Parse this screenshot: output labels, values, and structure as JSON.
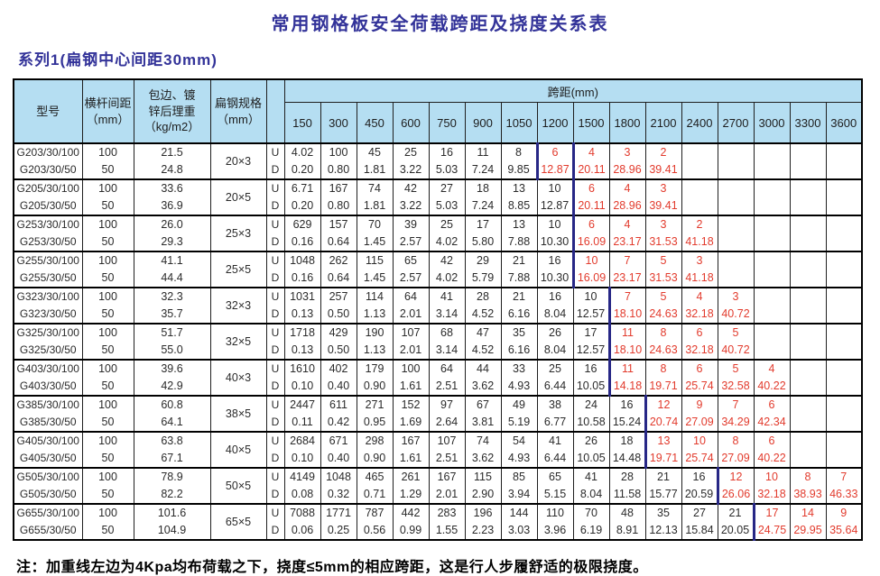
{
  "page": {
    "title": "常用钢格板安全荷载跨距及挠度关系表",
    "series_label": "系列1(扁钢中心间距30mm)",
    "note": "注：加重线左边为4Kpa均布荷载之下，挠度≤5mm的相应跨距，这是行人步履舒适的极限挠度。"
  },
  "colors": {
    "title_text": "#333399",
    "header_bg": "#b5def2",
    "red_value": "#e23b2d",
    "heavy_line": "#272786",
    "grid_border": "#1f1f1f"
  },
  "table": {
    "headers": {
      "model": "型号",
      "spacing": "横杆间距\n（mm）",
      "weight": "包边、镀\n锌后理重\n（kg/m2）",
      "spec": "扁钢规格\n（mm）",
      "span_group": "跨距(mm)"
    },
    "spans": [
      "150",
      "300",
      "450",
      "600",
      "750",
      "900",
      "1050",
      "1200",
      "1500",
      "1800",
      "2100",
      "2400",
      "2700",
      "3000",
      "3300",
      "3600"
    ],
    "ud_labels": [
      "U",
      "D"
    ],
    "rows": [
      {
        "models": [
          "G203/30/100",
          "G203/30/50"
        ],
        "spacings": [
          "100",
          "50"
        ],
        "weights": [
          "21.5",
          "24.8"
        ],
        "spec": "20×3",
        "u": [
          "4.02",
          "100",
          "45",
          "25",
          "16",
          "11",
          "8",
          "6",
          "4",
          "3",
          "2",
          "",
          "",
          "",
          "",
          ""
        ],
        "d": [
          "0.20",
          "0.80",
          "1.81",
          "3.22",
          "5.03",
          "7.24",
          "9.85",
          "12.87",
          "20.11",
          "28.96",
          "39.41",
          "",
          "",
          "",
          "",
          ""
        ],
        "red_from": 7,
        "heavy_cols": [
          7,
          8
        ]
      },
      {
        "models": [
          "G205/30/100",
          "G205/30/50"
        ],
        "spacings": [
          "100",
          "50"
        ],
        "weights": [
          "33.6",
          "36.9"
        ],
        "spec": "20×5",
        "u": [
          "6.71",
          "167",
          "74",
          "42",
          "27",
          "18",
          "13",
          "10",
          "6",
          "4",
          "3",
          "",
          "",
          "",
          "",
          ""
        ],
        "d": [
          "0.20",
          "0.80",
          "1.81",
          "3.22",
          "5.03",
          "7.24",
          "8.85",
          "12.87",
          "20.11",
          "28.96",
          "39.41",
          "",
          "",
          "",
          "",
          ""
        ],
        "red_from": 8,
        "heavy_cols": [
          8
        ]
      },
      {
        "models": [
          "G253/30/100",
          "G253/30/50"
        ],
        "spacings": [
          "100",
          "50"
        ],
        "weights": [
          "26.0",
          "29.3"
        ],
        "spec": "25×3",
        "u": [
          "629",
          "157",
          "70",
          "39",
          "25",
          "17",
          "13",
          "10",
          "6",
          "4",
          "3",
          "2",
          "",
          "",
          "",
          ""
        ],
        "d": [
          "0.16",
          "0.64",
          "1.45",
          "2.57",
          "4.02",
          "5.80",
          "7.88",
          "10.30",
          "16.09",
          "23.17",
          "31.53",
          "41.18",
          "",
          "",
          "",
          ""
        ],
        "red_from": 8,
        "heavy_cols": [
          8
        ]
      },
      {
        "models": [
          "G255/30/100",
          "G255/30/50"
        ],
        "spacings": [
          "100",
          "50"
        ],
        "weights": [
          "41.1",
          "44.4"
        ],
        "spec": "25×5",
        "u": [
          "1048",
          "262",
          "115",
          "65",
          "42",
          "29",
          "21",
          "16",
          "10",
          "7",
          "5",
          "3",
          "",
          "",
          "",
          ""
        ],
        "d": [
          "0.16",
          "0.64",
          "1.45",
          "2.57",
          "4.02",
          "5.79",
          "7.88",
          "10.30",
          "16.09",
          "23.17",
          "31.53",
          "41.18",
          "",
          "",
          "",
          ""
        ],
        "red_from": 8,
        "heavy_cols": [
          8
        ]
      },
      {
        "models": [
          "G323/30/100",
          "G323/30/50"
        ],
        "spacings": [
          "100",
          "50"
        ],
        "weights": [
          "32.3",
          "35.7"
        ],
        "spec": "32×3",
        "u": [
          "1031",
          "257",
          "114",
          "64",
          "41",
          "28",
          "21",
          "16",
          "10",
          "7",
          "5",
          "4",
          "3",
          "",
          "",
          ""
        ],
        "d": [
          "0.13",
          "0.50",
          "1.13",
          "2.01",
          "3.14",
          "4.52",
          "6.16",
          "8.04",
          "12.57",
          "18.10",
          "24.63",
          "32.18",
          "40.72",
          "",
          "",
          ""
        ],
        "red_from": 9,
        "heavy_cols": [
          9
        ]
      },
      {
        "models": [
          "G325/30/100",
          "G325/30/50"
        ],
        "spacings": [
          "100",
          "50"
        ],
        "weights": [
          "51.7",
          "55.0"
        ],
        "spec": "32×5",
        "u": [
          "1718",
          "429",
          "190",
          "107",
          "68",
          "47",
          "35",
          "26",
          "17",
          "11",
          "8",
          "6",
          "5",
          "",
          "",
          ""
        ],
        "d": [
          "0.13",
          "0.50",
          "1.13",
          "2.01",
          "3.14",
          "4.52",
          "6.16",
          "8.04",
          "12.57",
          "18.10",
          "24.63",
          "32.18",
          "40.72",
          "",
          "",
          ""
        ],
        "red_from": 9,
        "heavy_cols": [
          9
        ]
      },
      {
        "models": [
          "G403/30/100",
          "G403/30/50"
        ],
        "spacings": [
          "100",
          "50"
        ],
        "weights": [
          "39.6",
          "42.9"
        ],
        "spec": "40×3",
        "u": [
          "1610",
          "402",
          "179",
          "100",
          "64",
          "44",
          "33",
          "25",
          "16",
          "11",
          "8",
          "6",
          "5",
          "4",
          "",
          ""
        ],
        "d": [
          "0.10",
          "0.40",
          "0.90",
          "1.61",
          "2.51",
          "3.62",
          "4.93",
          "6.44",
          "10.05",
          "14.18",
          "19.71",
          "25.74",
          "32.58",
          "40.22",
          "",
          ""
        ],
        "red_from": 9,
        "heavy_cols": [
          9
        ]
      },
      {
        "models": [
          "G385/30/100",
          "G385/30/50"
        ],
        "spacings": [
          "100",
          "50"
        ],
        "weights": [
          "60.8",
          "64.1"
        ],
        "spec": "38×5",
        "u": [
          "2447",
          "611",
          "271",
          "152",
          "97",
          "67",
          "49",
          "38",
          "24",
          "16",
          "12",
          "9",
          "7",
          "6",
          "",
          ""
        ],
        "d": [
          "0.11",
          "0.42",
          "0.95",
          "1.69",
          "2.64",
          "3.81",
          "5.19",
          "6.77",
          "10.58",
          "15.24",
          "20.74",
          "27.09",
          "34.29",
          "42.34",
          "",
          ""
        ],
        "red_from": 10,
        "heavy_cols": [
          10
        ]
      },
      {
        "models": [
          "G405/30/100",
          "G405/30/50"
        ],
        "spacings": [
          "100",
          "50"
        ],
        "weights": [
          "63.8",
          "67.1"
        ],
        "spec": "40×5",
        "u": [
          "2684",
          "671",
          "298",
          "167",
          "107",
          "74",
          "54",
          "41",
          "26",
          "18",
          "13",
          "10",
          "8",
          "6",
          "",
          ""
        ],
        "d": [
          "0.10",
          "0.40",
          "0.90",
          "1.61",
          "2.51",
          "3.62",
          "4.93",
          "6.44",
          "10.05",
          "14.48",
          "19.71",
          "25.74",
          "27.09",
          "40.22",
          "",
          ""
        ],
        "red_from": 10,
        "heavy_cols": [
          10
        ]
      },
      {
        "models": [
          "G505/30/100",
          "G505/30/50"
        ],
        "spacings": [
          "100",
          "50"
        ],
        "weights": [
          "78.9",
          "82.2"
        ],
        "spec": "50×5",
        "u": [
          "4149",
          "1048",
          "465",
          "261",
          "167",
          "115",
          "85",
          "65",
          "41",
          "28",
          "21",
          "16",
          "12",
          "10",
          "8",
          "7"
        ],
        "d": [
          "0.08",
          "0.32",
          "0.71",
          "1.29",
          "2.01",
          "2.90",
          "3.94",
          "5.15",
          "8.04",
          "11.58",
          "15.77",
          "20.59",
          "26.06",
          "32.18",
          "38.93",
          "46.33"
        ],
        "red_from": 12,
        "heavy_cols": [
          12
        ]
      },
      {
        "models": [
          "G655/30/100",
          "G655/30/50"
        ],
        "spacings": [
          "100",
          "50"
        ],
        "weights": [
          "101.6",
          "104.9"
        ],
        "spec": "65×5",
        "u": [
          "7088",
          "1771",
          "787",
          "442",
          "283",
          "196",
          "144",
          "110",
          "70",
          "48",
          "35",
          "27",
          "21",
          "17",
          "14",
          "9"
        ],
        "d": [
          "0.06",
          "0.25",
          "0.56",
          "0.99",
          "1.55",
          "2.23",
          "3.03",
          "3.96",
          "6.19",
          "8.91",
          "12.13",
          "15.84",
          "20.05",
          "24.75",
          "29.95",
          "35.64"
        ],
        "red_from": 13,
        "heavy_cols": [
          13
        ]
      }
    ]
  }
}
